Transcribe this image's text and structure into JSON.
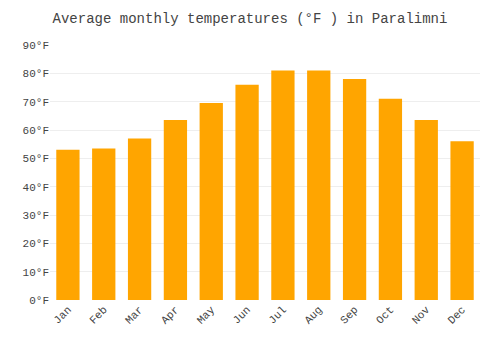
{
  "chart_data": {
    "type": "bar",
    "title": "Average monthly temperatures (°F ) in Paralimni",
    "categories": [
      "Jan",
      "Feb",
      "Mar",
      "Apr",
      "May",
      "Jun",
      "Jul",
      "Aug",
      "Sep",
      "Oct",
      "Nov",
      "Dec"
    ],
    "values": [
      53,
      53.5,
      57,
      63.5,
      69.5,
      76,
      81,
      81,
      78,
      71,
      63.5,
      56
    ],
    "color": "#FFA500",
    "ylim": [
      0,
      90
    ],
    "yticks": [
      {
        "value": 0,
        "label": "0°F"
      },
      {
        "value": 10,
        "label": "10°F"
      },
      {
        "value": 20,
        "label": "20°F"
      },
      {
        "value": 30,
        "label": "30°F"
      },
      {
        "value": 40,
        "label": "40°F"
      },
      {
        "value": 50,
        "label": "50°F"
      },
      {
        "value": 60,
        "label": "60°F"
      },
      {
        "value": 70,
        "label": "70°F"
      },
      {
        "value": 80,
        "label": "80°F"
      },
      {
        "value": 90,
        "label": "90°F"
      }
    ],
    "grid": true
  }
}
